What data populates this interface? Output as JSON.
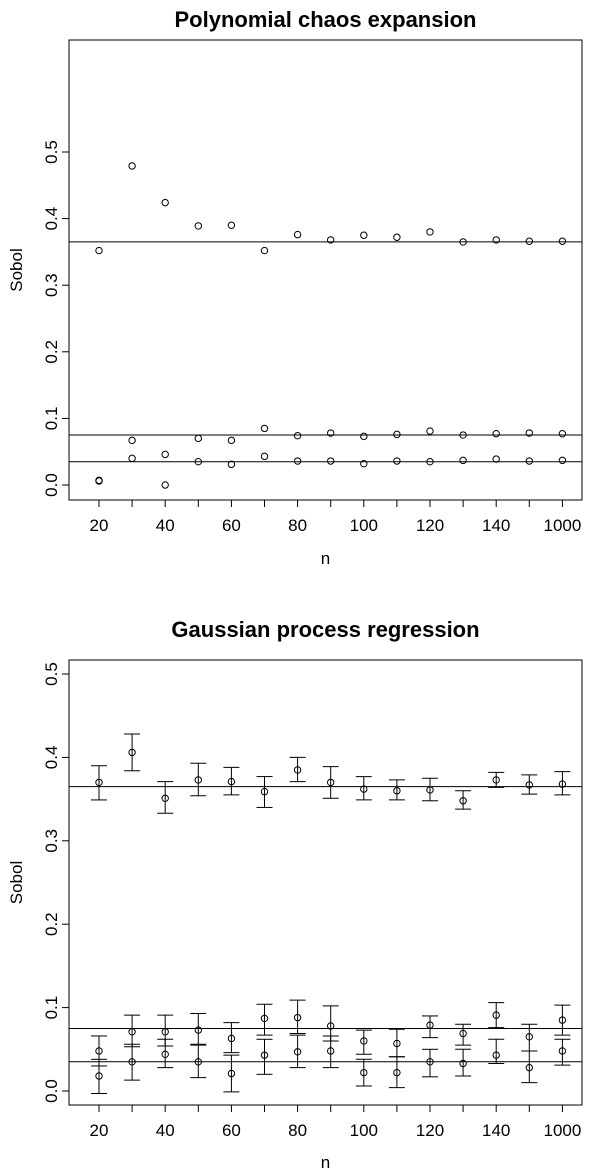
{
  "chart_data": [
    {
      "type": "scatter",
      "title": "Polynomial chaos expansion",
      "xlabel": "n",
      "ylabel": "Sobol",
      "categories": [
        "20",
        "30",
        "40",
        "50",
        "60",
        "70",
        "80",
        "90",
        "100",
        "110",
        "120",
        "130",
        "140",
        "150",
        "1000"
      ],
      "x_tick_labels": [
        "20",
        "40",
        "60",
        "80",
        "100",
        "120",
        "140",
        "1000"
      ],
      "y_tick_labels": [
        "0.0",
        "0.1",
        "0.2",
        "0.3",
        "0.4",
        "0.5"
      ],
      "ylim": [
        0,
        0.5
      ],
      "reference_lines": [
        0.365,
        0.075,
        0.035
      ],
      "series": [
        {
          "values": [
            0.352,
            0.479,
            0.424,
            0.389,
            0.39,
            0.352,
            0.376,
            0.368,
            0.375,
            0.372,
            0.38,
            0.365,
            0.368,
            0.366,
            0.366
          ]
        },
        {
          "values": [
            0.006,
            0.067,
            0.046,
            0.07,
            0.067,
            0.085,
            0.074,
            0.078,
            0.073,
            0.076,
            0.081,
            0.075,
            0.077,
            0.078,
            0.077
          ]
        },
        {
          "values": [
            0.007,
            0.04,
            0.0,
            0.035,
            0.031,
            0.043,
            0.036,
            0.036,
            0.032,
            0.036,
            0.035,
            0.037,
            0.039,
            0.036,
            0.037
          ]
        }
      ]
    },
    {
      "type": "scatter",
      "title": "Gaussian process regression",
      "xlabel": "n",
      "ylabel": "Sobol",
      "categories": [
        "20",
        "30",
        "40",
        "50",
        "60",
        "70",
        "80",
        "90",
        "100",
        "110",
        "120",
        "130",
        "140",
        "150",
        "1000"
      ],
      "x_tick_labels": [
        "20",
        "40",
        "60",
        "80",
        "100",
        "120",
        "140",
        "1000"
      ],
      "y_tick_labels": [
        "0.0",
        "0.1",
        "0.2",
        "0.3",
        "0.4",
        "0.5"
      ],
      "ylim": [
        0,
        0.5
      ],
      "reference_lines": [
        0.365,
        0.075,
        0.035
      ],
      "error_bars": true,
      "series": [
        {
          "values": [
            0.37,
            0.406,
            0.351,
            0.373,
            0.371,
            0.359,
            0.385,
            0.37,
            0.362,
            0.36,
            0.361,
            0.348,
            0.373,
            0.367,
            0.368
          ],
          "lower": [
            0.349,
            0.384,
            0.333,
            0.354,
            0.355,
            0.34,
            0.371,
            0.351,
            0.349,
            0.349,
            0.348,
            0.338,
            0.364,
            0.356,
            0.355
          ],
          "upper": [
            0.39,
            0.428,
            0.371,
            0.393,
            0.388,
            0.377,
            0.4,
            0.389,
            0.377,
            0.373,
            0.375,
            0.36,
            0.382,
            0.379,
            0.383
          ]
        },
        {
          "values": [
            0.048,
            0.071,
            0.071,
            0.073,
            0.063,
            0.087,
            0.088,
            0.078,
            0.06,
            0.057,
            0.079,
            0.069,
            0.091,
            0.065,
            0.085
          ],
          "lower": [
            0.03,
            0.053,
            0.054,
            0.055,
            0.046,
            0.067,
            0.069,
            0.06,
            0.044,
            0.041,
            0.064,
            0.055,
            0.076,
            0.048,
            0.067
          ],
          "upper": [
            0.066,
            0.091,
            0.091,
            0.093,
            0.082,
            0.104,
            0.109,
            0.102,
            0.073,
            0.074,
            0.09,
            0.08,
            0.106,
            0.08,
            0.103
          ]
        },
        {
          "values": [
            0.018,
            0.035,
            0.044,
            0.035,
            0.021,
            0.043,
            0.047,
            0.048,
            0.022,
            0.022,
            0.035,
            0.033,
            0.043,
            0.028,
            0.048
          ],
          "lower": [
            -0.003,
            0.013,
            0.028,
            0.016,
            -0.001,
            0.02,
            0.028,
            0.028,
            0.006,
            0.004,
            0.017,
            0.018,
            0.033,
            0.01,
            0.031
          ],
          "upper": [
            0.038,
            0.056,
            0.062,
            0.056,
            0.043,
            0.062,
            0.067,
            0.066,
            0.038,
            0.041,
            0.05,
            0.05,
            0.062,
            0.048,
            0.062
          ]
        }
      ]
    }
  ]
}
